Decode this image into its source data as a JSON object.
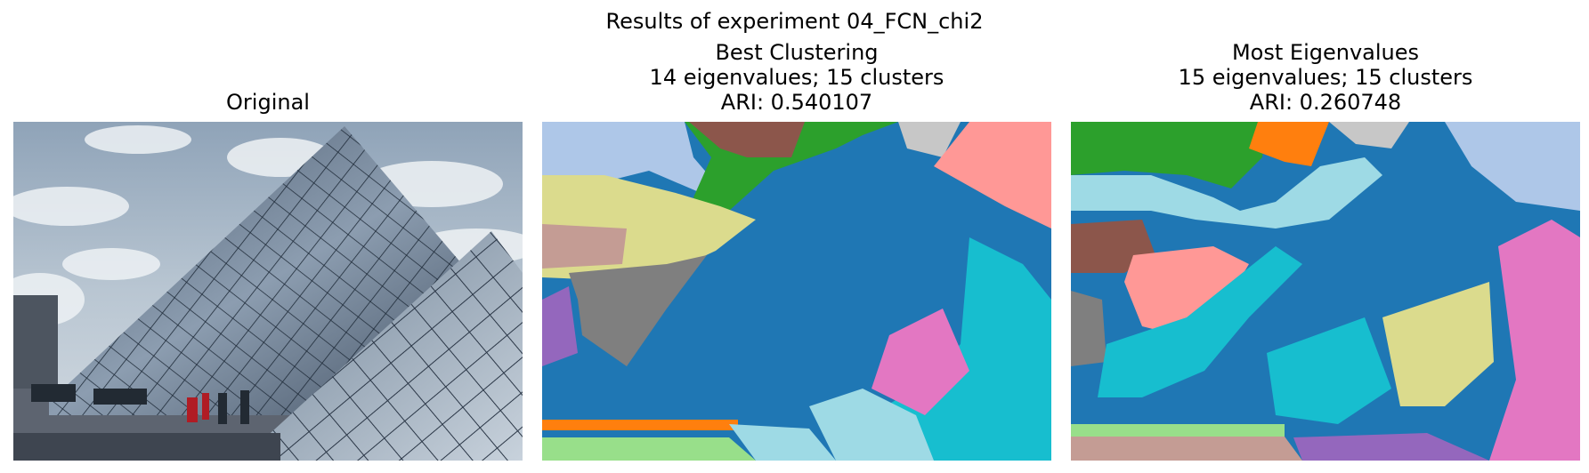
{
  "figure": {
    "title": "Results of experiment 04_FCN_chi2"
  },
  "panels": [
    {
      "id": "original",
      "title_lines": [
        "Original"
      ]
    },
    {
      "id": "best",
      "title_lines": [
        "Best Clustering",
        "14 eigenvalues; 15 clusters",
        "ARI: 0.540107"
      ]
    },
    {
      "id": "most",
      "title_lines": [
        "Most Eigenvalues",
        "15 eigenvalues; 15 clusters",
        "ARI: 0.260748"
      ]
    }
  ],
  "colors": {
    "blue": "#1f77b4",
    "lightblue": "#aec7e8",
    "orange": "#ff7f0e",
    "green": "#2ca02c",
    "lightgreen": "#98df8a",
    "salmon": "#ff9896",
    "purple": "#9467bd",
    "brown": "#8c564b",
    "tan": "#c49c94",
    "pink": "#e377c2",
    "gray": "#7f7f7f",
    "lightgray": "#c7c7c7",
    "olive": "#dbdb8d",
    "cyan": "#17becf",
    "lightcyan": "#9edae5"
  }
}
